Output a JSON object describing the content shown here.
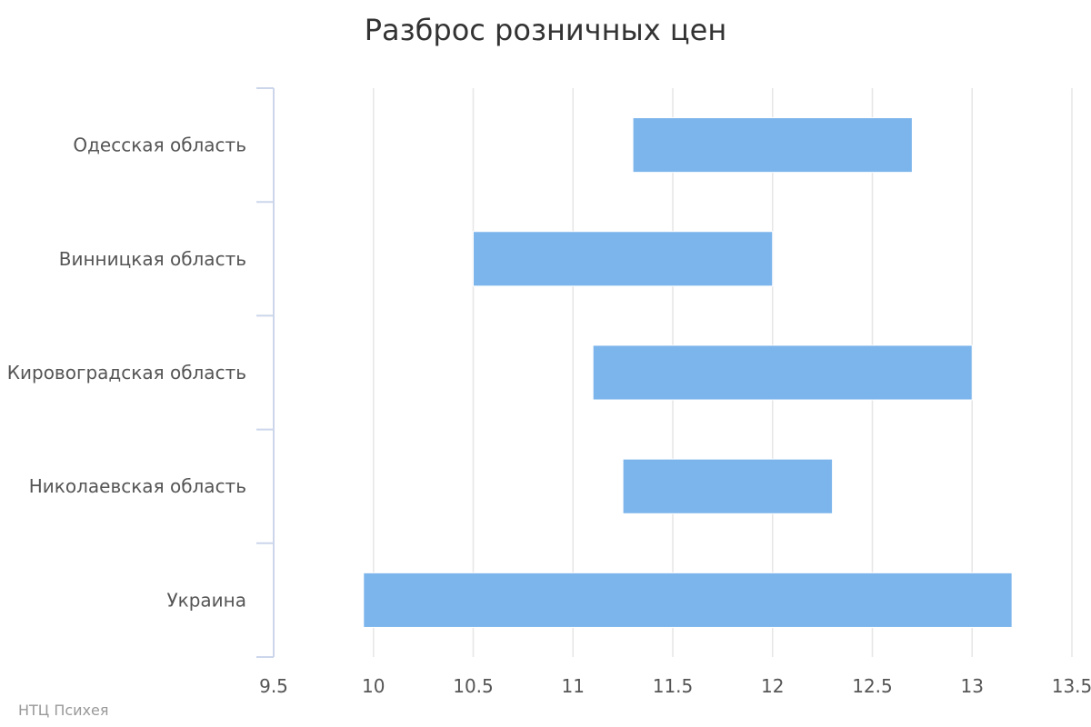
{
  "credits": "НТЦ Психея",
  "chart_data": {
    "type": "bar",
    "orientation": "horizontal",
    "subtype": "range",
    "title": "Разброс розничных цен",
    "xlabel": "",
    "ylabel": "",
    "categories": [
      "Одесская область",
      "Винницкая область",
      "Кировоградская область",
      "Николаевская область",
      "Украина"
    ],
    "series": [
      {
        "low": [
          11.3,
          10.5,
          11.1,
          11.25,
          9.95
        ],
        "high": [
          12.7,
          12.0,
          13.0,
          12.3,
          13.2
        ]
      }
    ],
    "xlim": [
      9.5,
      13.5
    ],
    "ticks": [
      "9.5",
      "10",
      "10.5",
      "11",
      "11.5",
      "12",
      "12.5",
      "13",
      "13.5"
    ],
    "tick_values": [
      9.5,
      10,
      10.5,
      11,
      11.5,
      12,
      12.5,
      13,
      13.5
    ],
    "grid": true,
    "bar_color": "#7cb5ec",
    "grid_color": "#e6e6e6",
    "axis_color": "#ccd6eb"
  }
}
